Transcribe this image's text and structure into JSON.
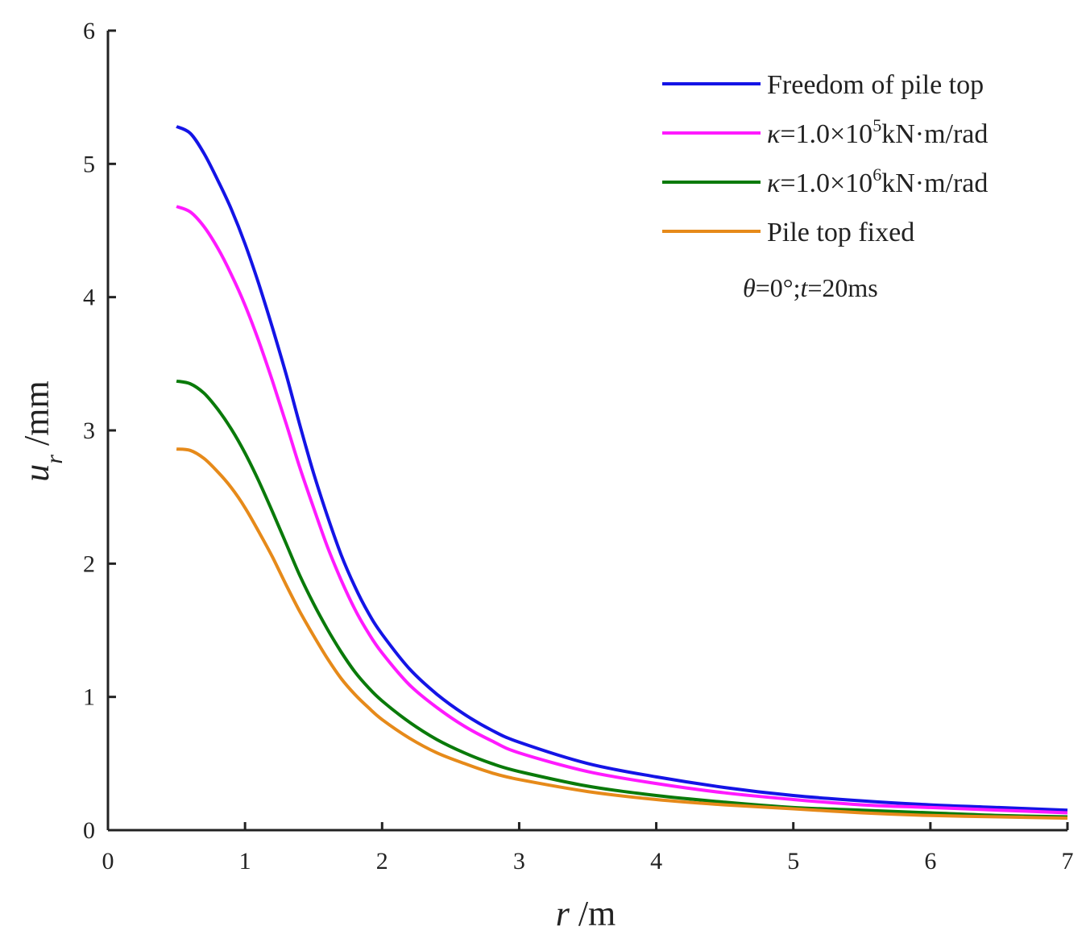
{
  "chart_data": {
    "type": "line",
    "title": "",
    "xlabel": {
      "symbol": "r",
      "unit": " /m"
    },
    "ylabel": {
      "symbol": "u",
      "subscript": "r",
      "unit": " /mm"
    },
    "xlim": [
      0,
      7
    ],
    "ylim": [
      0,
      6
    ],
    "xticks": [
      0,
      1,
      2,
      3,
      4,
      5,
      6,
      7
    ],
    "yticks": [
      0,
      1,
      2,
      3,
      4,
      5,
      6
    ],
    "grid": false,
    "legend_position": "top-right",
    "x": [
      0.5,
      0.6,
      0.7,
      0.8,
      0.9,
      1.0,
      1.1,
      1.2,
      1.3,
      1.4,
      1.5,
      1.6,
      1.7,
      1.8,
      1.9,
      2.0,
      2.2,
      2.4,
      2.6,
      2.8,
      3.0,
      3.5,
      4.0,
      4.5,
      5.0,
      5.5,
      6.0,
      6.5,
      7.0
    ],
    "series": [
      {
        "name": "Freedom of pile top",
        "color": "#1414e6",
        "legend": {
          "text": "Freedom of pile top"
        },
        "values": [
          5.28,
          5.23,
          5.08,
          4.88,
          4.66,
          4.4,
          4.1,
          3.77,
          3.42,
          3.04,
          2.68,
          2.36,
          2.07,
          1.83,
          1.63,
          1.47,
          1.21,
          1.02,
          0.87,
          0.75,
          0.66,
          0.5,
          0.4,
          0.32,
          0.26,
          0.22,
          0.19,
          0.17,
          0.15
        ]
      },
      {
        "name": "κ=1.0×10^5 kN·m/rad",
        "color": "#ff1aff",
        "legend": {
          "prefix": "κ",
          "text_a": "=1.0×10",
          "sup": "5",
          "text_b": "kN·m/rad"
        },
        "values": [
          4.68,
          4.64,
          4.53,
          4.37,
          4.17,
          3.94,
          3.67,
          3.37,
          3.05,
          2.72,
          2.42,
          2.13,
          1.88,
          1.66,
          1.48,
          1.33,
          1.09,
          0.92,
          0.78,
          0.67,
          0.58,
          0.44,
          0.35,
          0.28,
          0.23,
          0.19,
          0.17,
          0.15,
          0.13
        ]
      },
      {
        "name": "κ=1.0×10^6 kN·m/rad",
        "color": "#0a7a0a",
        "legend": {
          "prefix": "κ",
          "text_a": "=1.0×10",
          "sup": "6",
          "text_b": "kN·m/rad"
        },
        "values": [
          3.37,
          3.35,
          3.28,
          3.16,
          3.01,
          2.83,
          2.62,
          2.39,
          2.15,
          1.91,
          1.7,
          1.51,
          1.34,
          1.19,
          1.07,
          0.97,
          0.81,
          0.68,
          0.58,
          0.5,
          0.44,
          0.33,
          0.26,
          0.21,
          0.17,
          0.15,
          0.13,
          0.11,
          0.1
        ]
      },
      {
        "name": "Pile top fixed",
        "color": "#e68a1a",
        "legend": {
          "text": "Pile top fixed"
        },
        "values": [
          2.86,
          2.85,
          2.79,
          2.69,
          2.57,
          2.42,
          2.24,
          2.05,
          1.84,
          1.64,
          1.46,
          1.29,
          1.14,
          1.02,
          0.92,
          0.83,
          0.69,
          0.58,
          0.5,
          0.43,
          0.38,
          0.29,
          0.23,
          0.19,
          0.16,
          0.13,
          0.11,
          0.1,
          0.09
        ]
      }
    ],
    "annotation": {
      "theta_symbol": "θ",
      "theta_value": "=0°;",
      "t_symbol": "t",
      "t_value": "=20ms"
    }
  }
}
